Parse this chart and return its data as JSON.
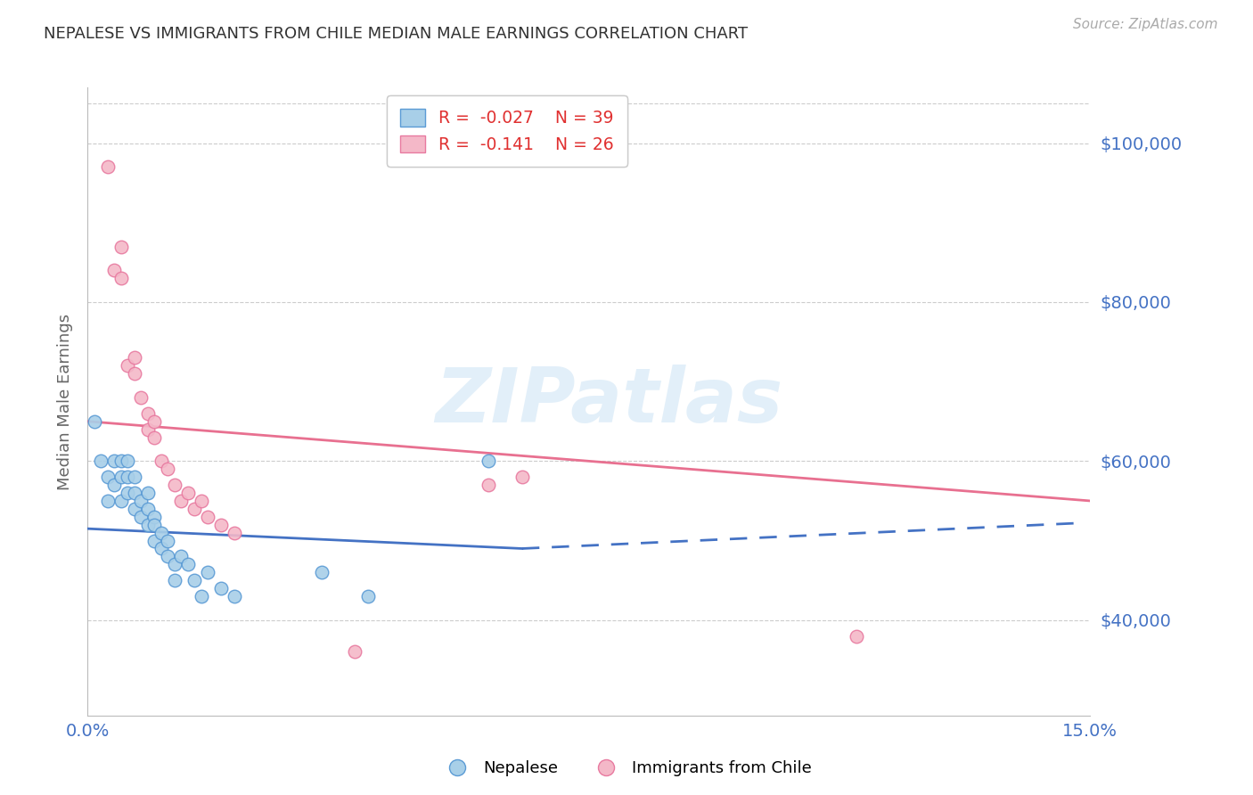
{
  "title": "NEPALESE VS IMMIGRANTS FROM CHILE MEDIAN MALE EARNINGS CORRELATION CHART",
  "source": "Source: ZipAtlas.com",
  "ylabel": "Median Male Earnings",
  "yticks": [
    40000,
    60000,
    80000,
    100000
  ],
  "ytick_labels": [
    "$40,000",
    "$60,000",
    "$80,000",
    "$100,000"
  ],
  "xlim": [
    0.0,
    0.15
  ],
  "ylim": [
    28000,
    107000
  ],
  "legend_r1": "R =  -0.027",
  "legend_n1": "N = 39",
  "legend_r2": "R =  -0.141",
  "legend_n2": "N = 26",
  "color_blue_fill": "#a8cfe8",
  "color_blue_edge": "#5b9bd5",
  "color_pink_fill": "#f4b8c8",
  "color_pink_edge": "#e87aa0",
  "color_blue_line": "#4472C4",
  "color_pink_line": "#e87090",
  "color_axis_label": "#4472C4",
  "watermark": "ZIPatlas",
  "nepalese_x": [
    0.001,
    0.002,
    0.003,
    0.003,
    0.004,
    0.004,
    0.005,
    0.005,
    0.005,
    0.006,
    0.006,
    0.006,
    0.007,
    0.007,
    0.007,
    0.008,
    0.008,
    0.009,
    0.009,
    0.009,
    0.01,
    0.01,
    0.01,
    0.011,
    0.011,
    0.012,
    0.012,
    0.013,
    0.013,
    0.014,
    0.015,
    0.016,
    0.017,
    0.018,
    0.02,
    0.022,
    0.035,
    0.042,
    0.06
  ],
  "nepalese_y": [
    65000,
    60000,
    58000,
    55000,
    57000,
    60000,
    60000,
    58000,
    55000,
    60000,
    58000,
    56000,
    58000,
    56000,
    54000,
    55000,
    53000,
    56000,
    54000,
    52000,
    53000,
    52000,
    50000,
    51000,
    49000,
    50000,
    48000,
    47000,
    45000,
    48000,
    47000,
    45000,
    43000,
    46000,
    44000,
    43000,
    46000,
    43000,
    60000
  ],
  "chile_x": [
    0.003,
    0.004,
    0.005,
    0.005,
    0.006,
    0.007,
    0.007,
    0.008,
    0.009,
    0.009,
    0.01,
    0.01,
    0.011,
    0.012,
    0.013,
    0.014,
    0.015,
    0.016,
    0.017,
    0.018,
    0.02,
    0.022,
    0.04,
    0.06,
    0.065,
    0.115
  ],
  "chile_y": [
    97000,
    84000,
    87000,
    83000,
    72000,
    73000,
    71000,
    68000,
    66000,
    64000,
    65000,
    63000,
    60000,
    59000,
    57000,
    55000,
    56000,
    54000,
    55000,
    53000,
    52000,
    51000,
    36000,
    57000,
    58000,
    38000
  ],
  "nepal_trend_x": [
    0.0,
    0.065
  ],
  "nepal_trend_y": [
    51500,
    49000
  ],
  "chile_trend_x": [
    0.0,
    0.15
  ],
  "chile_trend_y": [
    65000,
    55000
  ]
}
